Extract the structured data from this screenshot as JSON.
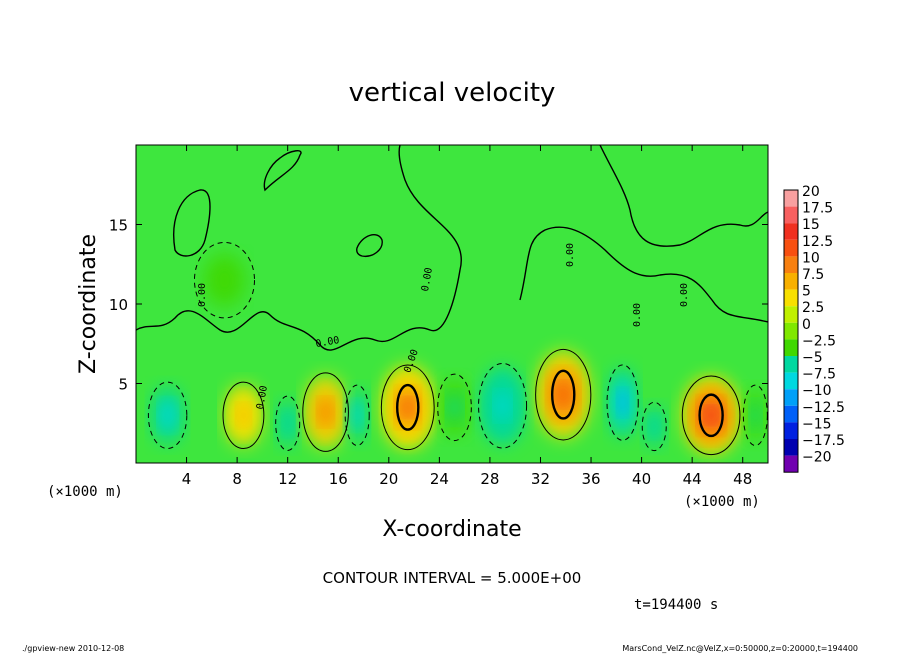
{
  "chart_data": {
    "type": "heatmap",
    "title": "vertical velocity",
    "xlabel": "X-coordinate",
    "ylabel": "Z-coordinate",
    "x_unit": "(×1000 m)",
    "x_ticks": [
      4,
      8,
      12,
      16,
      20,
      24,
      28,
      32,
      36,
      40,
      44,
      48
    ],
    "y_ticks": [
      5,
      10,
      15
    ],
    "xlim": [
      0,
      50
    ],
    "ylim": [
      0,
      20
    ],
    "contour_interval_label": "CONTOUR INTERVAL = 5.000E+00",
    "time_label": "t=194400 s",
    "contour_labels": [
      "0.00",
      "0.00",
      "0.00",
      "0.00",
      "0.00",
      "0.00",
      "0.00",
      "0.00"
    ],
    "colorbar": {
      "levels": [
        "20",
        "17.5",
        "15",
        "12.5",
        "10",
        "7.5",
        "5",
        "2.5",
        "0",
        "-2.5",
        "-5",
        "-7.5",
        "-10",
        "-12.5",
        "-15",
        "-17.5",
        "-20"
      ],
      "colors": [
        "#f8a0a0",
        "#f86060",
        "#f03020",
        "#f85010",
        "#f88010",
        "#f8b000",
        "#f8e000",
        "#c0f000",
        "#80e800",
        "#40d800",
        "#00d8a0",
        "#00d8e0",
        "#00a0f8",
        "#0060f8",
        "#0020e0",
        "#0000b0",
        "#7000b0"
      ]
    },
    "cells": [
      {
        "x": 2.5,
        "z": 3.0,
        "sx": 1.6,
        "sz": 2.2,
        "v": -7
      },
      {
        "x": 8.5,
        "z": 3.0,
        "sx": 1.7,
        "sz": 2.2,
        "v": 8
      },
      {
        "x": 12.0,
        "z": 2.5,
        "sx": 1.0,
        "sz": 1.8,
        "v": -6
      },
      {
        "x": 15.0,
        "z": 3.2,
        "sx": 1.9,
        "sz": 2.6,
        "v": 9
      },
      {
        "x": 17.5,
        "z": 3.0,
        "sx": 1.0,
        "sz": 2.0,
        "v": -7
      },
      {
        "x": 21.5,
        "z": 3.5,
        "sx": 2.2,
        "sz": 2.8,
        "v": 13
      },
      {
        "x": 25.2,
        "z": 3.5,
        "sx": 1.4,
        "sz": 2.2,
        "v": -5
      },
      {
        "x": 29.0,
        "z": 3.6,
        "sx": 2.0,
        "sz": 2.8,
        "v": -8
      },
      {
        "x": 33.8,
        "z": 4.3,
        "sx": 2.3,
        "sz": 3.0,
        "v": 12
      },
      {
        "x": 38.5,
        "z": 3.8,
        "sx": 1.3,
        "sz": 2.5,
        "v": -9
      },
      {
        "x": 41.0,
        "z": 2.3,
        "sx": 1.0,
        "sz": 1.6,
        "v": -6
      },
      {
        "x": 45.5,
        "z": 3.0,
        "sx": 2.4,
        "sz": 2.6,
        "v": 14
      },
      {
        "x": 49.0,
        "z": 3.0,
        "sx": 1.0,
        "sz": 2.0,
        "v": -5
      },
      {
        "x": 7.0,
        "z": 11.5,
        "sx": 2.5,
        "sz": 2.5,
        "v": -2
      }
    ]
  },
  "footer": {
    "left": "./gpview-new  2010-12-08",
    "right": "MarsCond_VelZ.nc@VelZ,x=0:50000,z=0:20000,t=194400"
  }
}
